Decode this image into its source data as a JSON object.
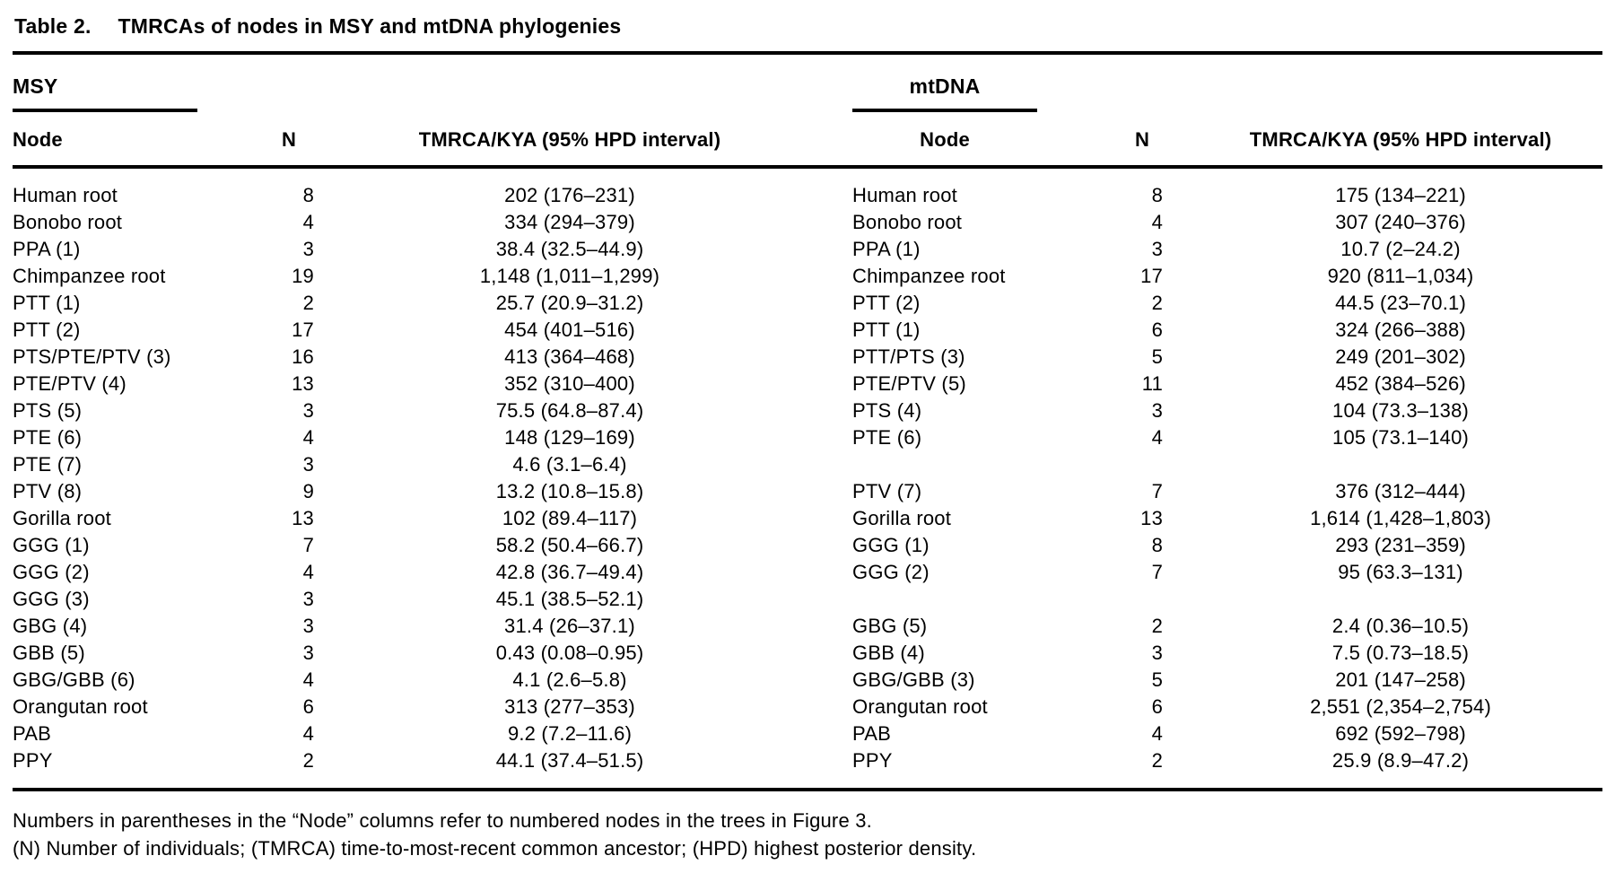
{
  "table": {
    "label": "Table 2.",
    "title": "TMRCAs of nodes in MSY and mtDNA phylogenies",
    "panels": [
      {
        "group": "MSY",
        "cols": {
          "node": "Node",
          "n": "N",
          "tmrca": "TMRCA/KYA (95% HPD interval)"
        }
      },
      {
        "group": "mtDNA",
        "cols": {
          "node": "Node",
          "n": "N",
          "tmrca": "TMRCA/KYA (95% HPD interval)"
        }
      }
    ],
    "rows": [
      {
        "msy": {
          "node": "Human root",
          "n": "8",
          "tmrca": "202 (176–231)"
        },
        "mt": {
          "node": "Human root",
          "n": "8",
          "tmrca": "175 (134–221)"
        }
      },
      {
        "msy": {
          "node": "Bonobo root",
          "n": "4",
          "tmrca": "334 (294–379)"
        },
        "mt": {
          "node": "Bonobo root",
          "n": "4",
          "tmrca": "307 (240–376)"
        }
      },
      {
        "msy": {
          "node": "PPA (1)",
          "n": "3",
          "tmrca": "38.4 (32.5–44.9)"
        },
        "mt": {
          "node": "PPA (1)",
          "n": "3",
          "tmrca": "10.7 (2–24.2)"
        }
      },
      {
        "msy": {
          "node": "Chimpanzee root",
          "n": "19",
          "tmrca": "1,148 (1,011–1,299)"
        },
        "mt": {
          "node": "Chimpanzee root",
          "n": "17",
          "tmrca": "920 (811–1,034)"
        }
      },
      {
        "msy": {
          "node": "PTT (1)",
          "n": "2",
          "tmrca": "25.7 (20.9–31.2)"
        },
        "mt": {
          "node": "PTT (2)",
          "n": "2",
          "tmrca": "44.5 (23–70.1)"
        }
      },
      {
        "msy": {
          "node": "PTT (2)",
          "n": "17",
          "tmrca": "454 (401–516)"
        },
        "mt": {
          "node": "PTT (1)",
          "n": "6",
          "tmrca": "324 (266–388)"
        }
      },
      {
        "msy": {
          "node": "PTS/PTE/PTV (3)",
          "n": "16",
          "tmrca": "413 (364–468)"
        },
        "mt": {
          "node": "PTT/PTS (3)",
          "n": "5",
          "tmrca": "249 (201–302)"
        }
      },
      {
        "msy": {
          "node": "PTE/PTV (4)",
          "n": "13",
          "tmrca": "352 (310–400)"
        },
        "mt": {
          "node": "PTE/PTV (5)",
          "n": "11",
          "tmrca": "452 (384–526)"
        }
      },
      {
        "msy": {
          "node": "PTS (5)",
          "n": "3",
          "tmrca": "75.5 (64.8–87.4)"
        },
        "mt": {
          "node": "PTS (4)",
          "n": "3",
          "tmrca": "104 (73.3–138)"
        }
      },
      {
        "msy": {
          "node": "PTE (6)",
          "n": "4",
          "tmrca": "148 (129–169)"
        },
        "mt": {
          "node": "PTE (6)",
          "n": "4",
          "tmrca": "105 (73.1–140)"
        }
      },
      {
        "msy": {
          "node": "PTE (7)",
          "n": "3",
          "tmrca": "4.6 (3.1–6.4)"
        },
        "mt": {
          "node": "",
          "n": "",
          "tmrca": ""
        }
      },
      {
        "msy": {
          "node": "PTV (8)",
          "n": "9",
          "tmrca": "13.2 (10.8–15.8)"
        },
        "mt": {
          "node": "PTV (7)",
          "n": "7",
          "tmrca": "376 (312–444)"
        }
      },
      {
        "msy": {
          "node": "Gorilla root",
          "n": "13",
          "tmrca": "102 (89.4–117)"
        },
        "mt": {
          "node": "Gorilla root",
          "n": "13",
          "tmrca": "1,614 (1,428–1,803)"
        }
      },
      {
        "msy": {
          "node": "GGG (1)",
          "n": "7",
          "tmrca": "58.2 (50.4–66.7)"
        },
        "mt": {
          "node": "GGG (1)",
          "n": "8",
          "tmrca": "293 (231–359)"
        }
      },
      {
        "msy": {
          "node": "GGG (2)",
          "n": "4",
          "tmrca": "42.8 (36.7–49.4)"
        },
        "mt": {
          "node": "GGG (2)",
          "n": "7",
          "tmrca": "95 (63.3–131)"
        }
      },
      {
        "msy": {
          "node": "GGG (3)",
          "n": "3",
          "tmrca": "45.1 (38.5–52.1)"
        },
        "mt": {
          "node": "",
          "n": "",
          "tmrca": ""
        }
      },
      {
        "msy": {
          "node": "GBG (4)",
          "n": "3",
          "tmrca": "31.4 (26–37.1)"
        },
        "mt": {
          "node": "GBG (5)",
          "n": "2",
          "tmrca": "2.4 (0.36–10.5)"
        }
      },
      {
        "msy": {
          "node": "GBB (5)",
          "n": "3",
          "tmrca": "0.43 (0.08–0.95)"
        },
        "mt": {
          "node": "GBB (4)",
          "n": "3",
          "tmrca": "7.5 (0.73–18.5)"
        }
      },
      {
        "msy": {
          "node": "GBG/GBB (6)",
          "n": "4",
          "tmrca": "4.1 (2.6–5.8)"
        },
        "mt": {
          "node": "GBG/GBB (3)",
          "n": "5",
          "tmrca": "201 (147–258)"
        }
      },
      {
        "msy": {
          "node": "Orangutan root",
          "n": "6",
          "tmrca": "313 (277–353)"
        },
        "mt": {
          "node": "Orangutan root",
          "n": "6",
          "tmrca": "2,551 (2,354–2,754)"
        }
      },
      {
        "msy": {
          "node": "PAB",
          "n": "4",
          "tmrca": "9.2 (7.2–11.6)"
        },
        "mt": {
          "node": "PAB",
          "n": "4",
          "tmrca": "692 (592–798)"
        }
      },
      {
        "msy": {
          "node": "PPY",
          "n": "2",
          "tmrca": "44.1 (37.4–51.5)"
        },
        "mt": {
          "node": "PPY",
          "n": "2",
          "tmrca": "25.9 (8.9–47.2)"
        }
      }
    ],
    "footnotes": [
      "Numbers in parentheses in the “Node” columns refer to numbered nodes in the trees in Figure 3.",
      "(N) Number of individuals; (TMRCA) time-to-most-recent common ancestor; (HPD) highest posterior density."
    ]
  }
}
